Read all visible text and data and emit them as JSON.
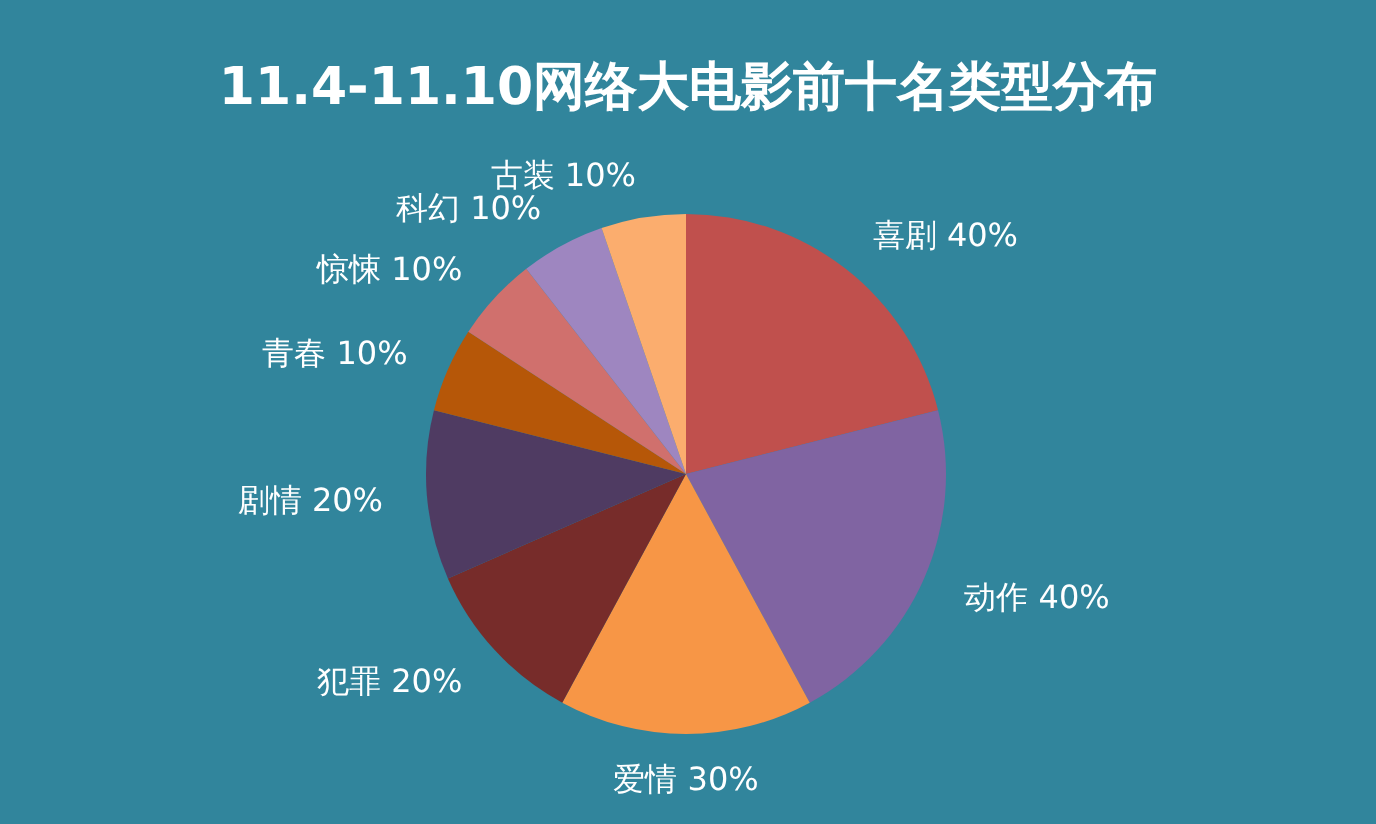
{
  "chart_data": {
    "type": "pie",
    "title": "11.4-11.10网络大电影前十名类型分布",
    "categories": [
      "喜剧",
      "动作",
      "爱情",
      "犯罪",
      "剧情",
      "青春",
      "惊悚",
      "科幻",
      "古装"
    ],
    "values": [
      40,
      40,
      30,
      20,
      20,
      10,
      10,
      10,
      10
    ],
    "value_labels": [
      "40%",
      "40%",
      "30%",
      "20%",
      "20%",
      "10%",
      "10%",
      "10%",
      "10%"
    ],
    "colors": [
      "#c0504d",
      "#8064a2",
      "#f79646",
      "#772c2a",
      "#4f3b62",
      "#b65708",
      "#d0706d",
      "#9e86c0",
      "#fbad6e"
    ]
  }
}
